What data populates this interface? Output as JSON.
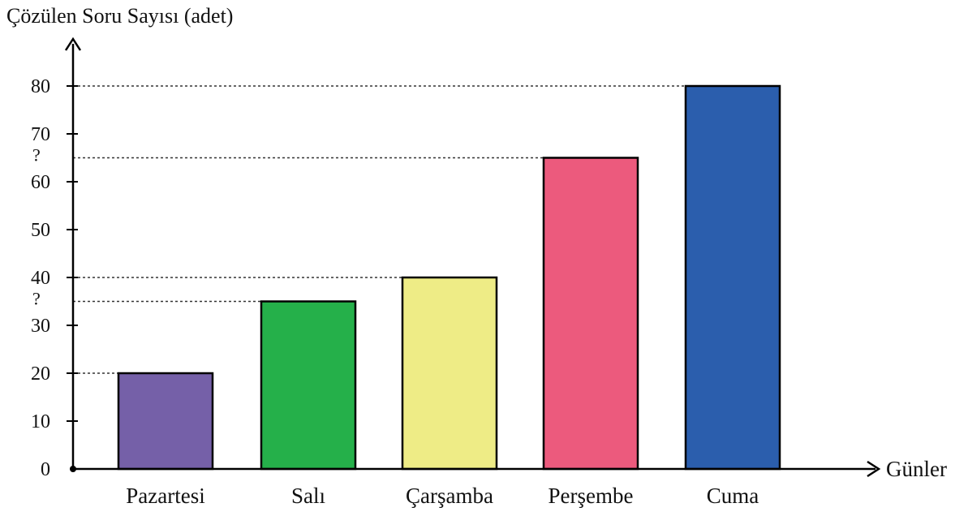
{
  "chart_data": {
    "type": "bar",
    "title": "",
    "ylabel": "Çözülen Soru Sayısı (adet)",
    "xlabel": "Günler",
    "categories": [
      "Pazartesi",
      "Salı",
      "Çarşamba",
      "Perşembe",
      "Cuma"
    ],
    "values": [
      20,
      35,
      40,
      65,
      80
    ],
    "colors": [
      "#7560a8",
      "#25b04a",
      "#eeec86",
      "#ec5a7d",
      "#2b5ead"
    ],
    "ylim": [
      0,
      90
    ],
    "yticks": [
      0,
      10,
      20,
      30,
      40,
      50,
      60,
      70,
      80
    ],
    "guides": [
      {
        "value": 20,
        "category": "Pazartesi",
        "label": ""
      },
      {
        "value": 35,
        "category": "Salı",
        "label": "?"
      },
      {
        "value": 40,
        "category": "Çarşamba",
        "label": ""
      },
      {
        "value": 65,
        "category": "Perşembe",
        "label": "?"
      },
      {
        "value": 80,
        "category": "Cuma",
        "label": ""
      }
    ],
    "grid": false,
    "legend": "none"
  }
}
